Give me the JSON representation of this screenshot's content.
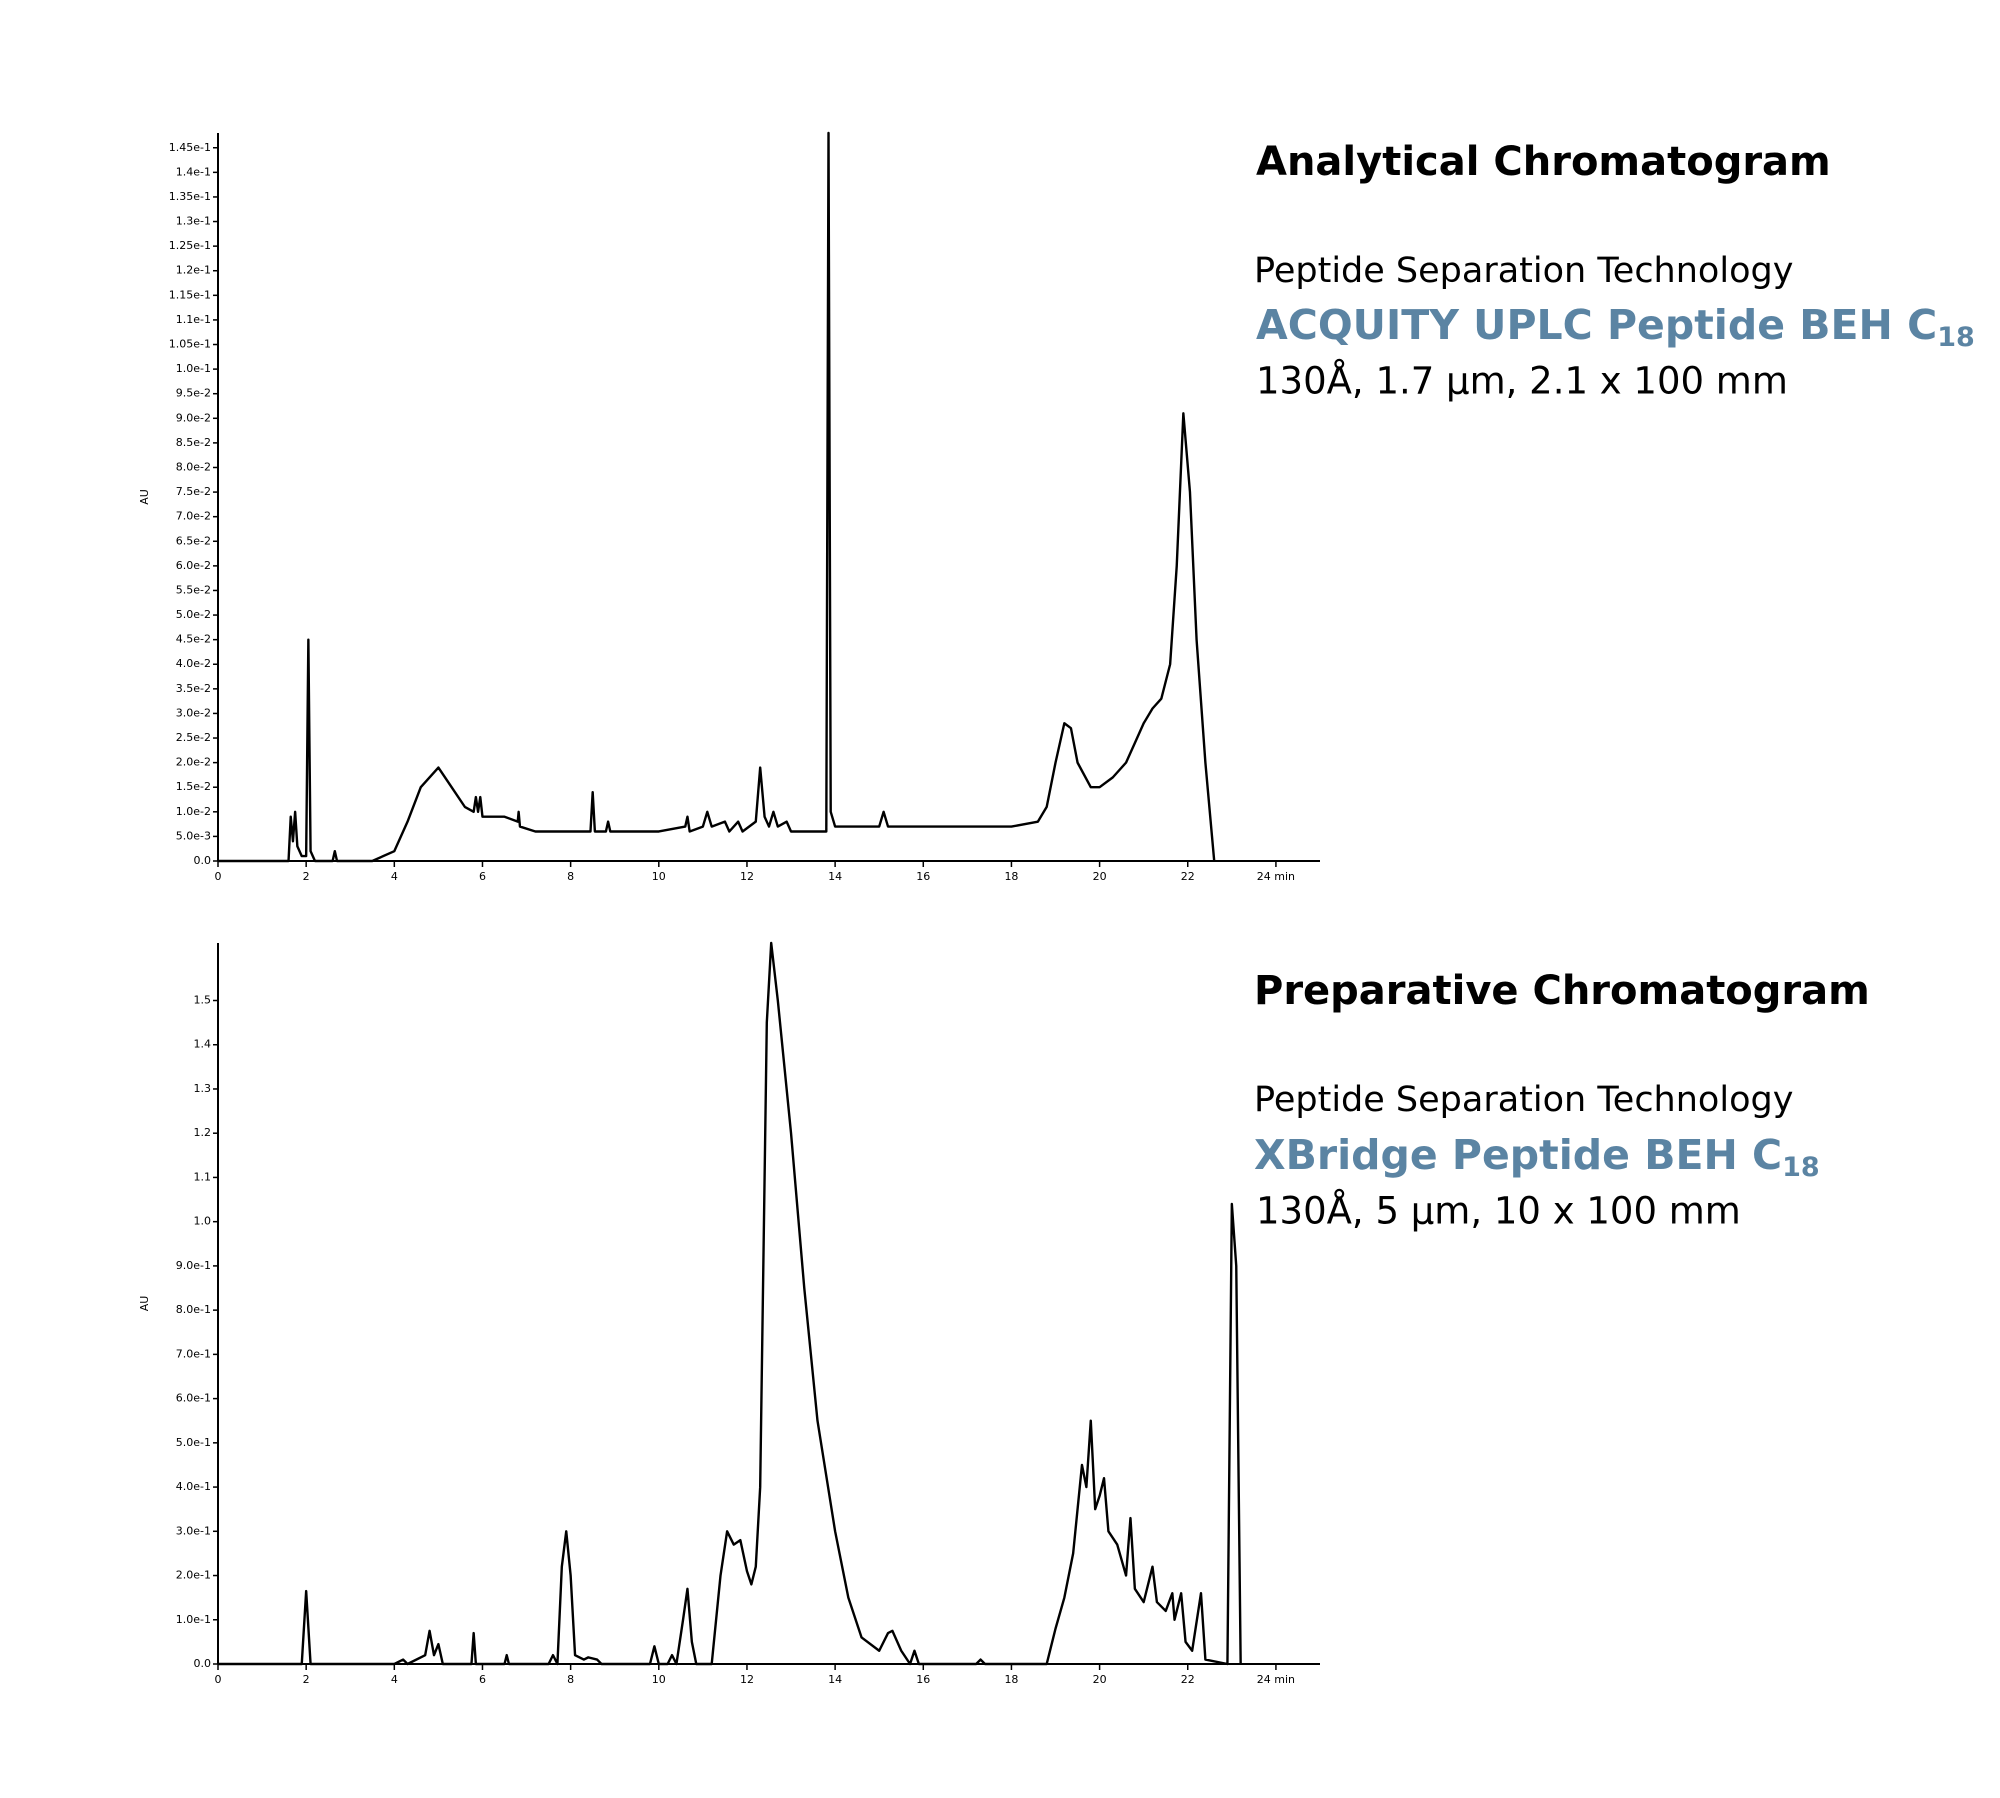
{
  "chart_data": [
    {
      "type": "line",
      "title": "Analytical Chromatogram",
      "subtitle": "Peptide Separation Technology",
      "column": "ACQUITY UPLC Peptide BEH C",
      "column_subscript": "18",
      "specs": "130Å, 1.7 µm, 2.1 x 100 mm",
      "ylabel": "AU",
      "color": "#000000",
      "xlim": [
        0,
        25
      ],
      "ylim": [
        0,
        0.148
      ],
      "xticks": [
        0,
        2,
        4,
        6,
        8,
        10,
        12,
        14,
        16,
        18,
        20,
        22,
        {
          "value": 24,
          "label": "24 min"
        }
      ],
      "yticks": [
        {
          "value": 0,
          "label": "0.0"
        },
        {
          "value": 0.005,
          "label": "5.0e-3"
        },
        {
          "value": 0.01,
          "label": "1.0e-2"
        },
        {
          "value": 0.015,
          "label": "1.5e-2"
        },
        {
          "value": 0.02,
          "label": "2.0e-2"
        },
        {
          "value": 0.025,
          "label": "2.5e-2"
        },
        {
          "value": 0.03,
          "label": "3.0e-2"
        },
        {
          "value": 0.035,
          "label": "3.5e-2"
        },
        {
          "value": 0.04,
          "label": "4.0e-2"
        },
        {
          "value": 0.045,
          "label": "4.5e-2"
        },
        {
          "value": 0.05,
          "label": "5.0e-2"
        },
        {
          "value": 0.055,
          "label": "5.5e-2"
        },
        {
          "value": 0.06,
          "label": "6.0e-2"
        },
        {
          "value": 0.065,
          "label": "6.5e-2"
        },
        {
          "value": 0.07,
          "label": "7.0e-2"
        },
        {
          "value": 0.075,
          "label": "7.5e-2"
        },
        {
          "value": 0.08,
          "label": "8.0e-2"
        },
        {
          "value": 0.085,
          "label": "8.5e-2"
        },
        {
          "value": 0.09,
          "label": "9.0e-2"
        },
        {
          "value": 0.095,
          "label": "9.5e-2"
        },
        {
          "value": 0.1,
          "label": "1.0e-1"
        },
        {
          "value": 0.105,
          "label": "1.05e-1"
        },
        {
          "value": 0.11,
          "label": "1.1e-1"
        },
        {
          "value": 0.115,
          "label": "1.15e-1"
        },
        {
          "value": 0.12,
          "label": "1.2e-1"
        },
        {
          "value": 0.125,
          "label": "1.25e-1"
        },
        {
          "value": 0.13,
          "label": "1.3e-1"
        },
        {
          "value": 0.135,
          "label": "1.35e-1"
        },
        {
          "value": 0.14,
          "label": "1.4e-1"
        },
        {
          "value": 0.145,
          "label": "1.45e-1"
        }
      ],
      "x": [
        0,
        1.6,
        1.65,
        1.7,
        1.75,
        1.8,
        1.9,
        2.0,
        2.05,
        2.1,
        2.2,
        2.6,
        2.65,
        2.7,
        3.5,
        4.0,
        4.3,
        4.6,
        5.0,
        5.3,
        5.6,
        5.8,
        5.85,
        5.9,
        5.95,
        6.0,
        6.5,
        6.8,
        6.82,
        6.85,
        7.2,
        7.5,
        8.0,
        8.45,
        8.5,
        8.55,
        8.8,
        8.85,
        8.9,
        10.0,
        10.6,
        10.65,
        10.7,
        11.0,
        11.1,
        11.2,
        11.5,
        11.6,
        11.8,
        11.9,
        12.2,
        12.3,
        12.4,
        12.5,
        12.6,
        12.7,
        12.9,
        13.0,
        13.8,
        13.85,
        13.9,
        14.0,
        15.0,
        15.1,
        15.2,
        18.0,
        18.6,
        18.8,
        19.0,
        19.2,
        19.35,
        19.5,
        19.8,
        20.0,
        20.3,
        20.6,
        20.8,
        21.0,
        21.2,
        21.4,
        21.6,
        21.75,
        21.9,
        22.05,
        22.2,
        22.4,
        22.55,
        22.6
      ],
      "values": [
        0,
        0,
        0.009,
        0.004,
        0.01,
        0.003,
        0.001,
        0.001,
        0.045,
        0.002,
        0,
        0,
        0.002,
        0,
        0,
        0.002,
        0.008,
        0.015,
        0.019,
        0.015,
        0.011,
        0.01,
        0.013,
        0.01,
        0.013,
        0.009,
        0.009,
        0.008,
        0.01,
        0.007,
        0.006,
        0.006,
        0.006,
        0.006,
        0.014,
        0.006,
        0.006,
        0.008,
        0.006,
        0.006,
        0.007,
        0.009,
        0.006,
        0.007,
        0.01,
        0.007,
        0.008,
        0.006,
        0.008,
        0.006,
        0.008,
        0.019,
        0.009,
        0.007,
        0.01,
        0.007,
        0.008,
        0.006,
        0.006,
        0.148,
        0.01,
        0.007,
        0.007,
        0.01,
        0.007,
        0.007,
        0.008,
        0.011,
        0.02,
        0.028,
        0.027,
        0.02,
        0.015,
        0.015,
        0.017,
        0.02,
        0.024,
        0.028,
        0.031,
        0.033,
        0.04,
        0.06,
        0.091,
        0.075,
        0.045,
        0.02,
        0.005,
        0
      ]
    },
    {
      "type": "line",
      "title": "Preparative Chromatogram",
      "subtitle": "Peptide Separation Technology",
      "column": "XBridge Peptide BEH C",
      "column_subscript": "18",
      "specs": "130Å, 5 µm, 10 x 100 mm",
      "ylabel": "AU",
      "color": "#000000",
      "xlim": [
        0,
        25
      ],
      "ylim": [
        0,
        1.63
      ],
      "xticks": [
        0,
        2,
        4,
        6,
        8,
        10,
        12,
        14,
        16,
        18,
        20,
        22,
        {
          "value": 24,
          "label": "24 min"
        }
      ],
      "yticks": [
        {
          "value": 0,
          "label": "0.0"
        },
        {
          "value": 0.1,
          "label": "1.0e-1"
        },
        {
          "value": 0.2,
          "label": "2.0e-1"
        },
        {
          "value": 0.3,
          "label": "3.0e-1"
        },
        {
          "value": 0.4,
          "label": "4.0e-1"
        },
        {
          "value": 0.5,
          "label": "5.0e-1"
        },
        {
          "value": 0.6,
          "label": "6.0e-1"
        },
        {
          "value": 0.7,
          "label": "7.0e-1"
        },
        {
          "value": 0.8,
          "label": "8.0e-1"
        },
        {
          "value": 0.9,
          "label": "9.0e-1"
        },
        {
          "value": 1,
          "label": "1.0"
        },
        {
          "value": 1.1,
          "label": "1.1"
        },
        {
          "value": 1.2,
          "label": "1.2"
        },
        {
          "value": 1.3,
          "label": "1.3"
        },
        {
          "value": 1.4,
          "label": "1.4"
        },
        {
          "value": 1.5,
          "label": "1.5"
        }
      ],
      "x": [
        0,
        1.9,
        2.0,
        2.1,
        4.0,
        4.2,
        4.3,
        4.7,
        4.8,
        4.9,
        5.0,
        5.1,
        5.75,
        5.8,
        5.85,
        6.5,
        6.55,
        6.6,
        7.5,
        7.6,
        7.7,
        7.8,
        7.9,
        8.0,
        8.1,
        8.3,
        8.4,
        8.6,
        8.7,
        9.8,
        9.9,
        10.0,
        10.2,
        10.3,
        10.4,
        10.55,
        10.65,
        10.75,
        10.85,
        11.2,
        11.4,
        11.55,
        11.7,
        11.85,
        12.0,
        12.1,
        12.2,
        12.3,
        12.45,
        12.55,
        12.7,
        12.85,
        13.0,
        13.3,
        13.6,
        14.0,
        14.3,
        14.6,
        15.0,
        15.2,
        15.3,
        15.5,
        15.7,
        15.8,
        15.9,
        17.2,
        17.3,
        17.4,
        18.8,
        19.0,
        19.2,
        19.4,
        19.6,
        19.7,
        19.8,
        19.9,
        20.0,
        20.1,
        20.2,
        20.4,
        20.6,
        20.7,
        20.8,
        21.0,
        21.2,
        21.3,
        21.5,
        21.65,
        21.7,
        21.85,
        21.95,
        22.1,
        22.3,
        22.4,
        22.9,
        23.0,
        23.1,
        23.2
      ],
      "values": [
        0,
        0,
        0.165,
        0,
        0,
        0.01,
        0,
        0.02,
        0.075,
        0.02,
        0.045,
        0,
        0,
        0.07,
        0,
        0,
        0.02,
        0,
        0,
        0.02,
        0,
        0.22,
        0.3,
        0.2,
        0.02,
        0.01,
        0.015,
        0.01,
        0,
        0,
        0.04,
        0,
        0,
        0.02,
        0,
        0.1,
        0.17,
        0.05,
        0,
        0,
        0.2,
        0.3,
        0.27,
        0.28,
        0.21,
        0.18,
        0.22,
        0.4,
        1.45,
        1.63,
        1.5,
        1.35,
        1.2,
        0.85,
        0.55,
        0.3,
        0.15,
        0.06,
        0.03,
        0.07,
        0.075,
        0.03,
        0,
        0.03,
        0,
        0,
        0.01,
        0,
        0,
        0.08,
        0.15,
        0.25,
        0.45,
        0.4,
        0.55,
        0.35,
        0.38,
        0.42,
        0.3,
        0.27,
        0.2,
        0.33,
        0.17,
        0.14,
        0.22,
        0.14,
        0.12,
        0.16,
        0.1,
        0.16,
        0.05,
        0.03,
        0.16,
        0.01,
        0,
        1.04,
        0.9,
        0
      ]
    }
  ]
}
